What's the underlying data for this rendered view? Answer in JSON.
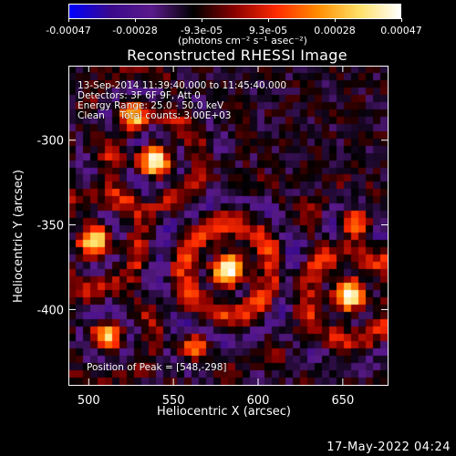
{
  "colorbar": {
    "ticks": [
      "-0.00047",
      "-0.00028",
      "-9.3e-05",
      "9.3e-05",
      "0.00028",
      "0.00047"
    ],
    "unit_label": "(photons cm⁻² s⁻¹ asec⁻²)",
    "colors": [
      "#0000ff",
      "#3a0a8c",
      "#5a1a8a",
      "#000000",
      "#8b0000",
      "#ff2a00",
      "#ff8c00",
      "#ffe066",
      "#ffffff"
    ]
  },
  "chart_data": {
    "type": "heatmap",
    "title": "Reconstructed RHESSI Image",
    "xlabel": "Heliocentric X (arcsec)",
    "ylabel": "Heliocentric Y (arcsec)",
    "xlim": [
      488,
      677
    ],
    "ylim": [
      -445,
      -256
    ],
    "x_ticks": [
      "500",
      "550",
      "600",
      "650"
    ],
    "y_ticks": [
      "-300",
      "-350",
      "-400"
    ],
    "x_tick_values": [
      500,
      550,
      600,
      650
    ],
    "y_tick_values": [
      -300,
      -350,
      -400
    ],
    "grid": false,
    "annotations": {
      "line1": "13-Sep-2014 11:39:40.000 to 11:45:40.000",
      "line2": "Detectors: 3F 6F 9F, Att 0",
      "line3": "Energy Range: 25.0 - 50.0 keV",
      "line4": "Clean     Total counts: 3.00E+03",
      "peak": "Position of Peak = [548,-298]"
    },
    "peak_position": [
      548,
      -298
    ]
  },
  "footer": {
    "date": "17-May-2022 04:24"
  }
}
